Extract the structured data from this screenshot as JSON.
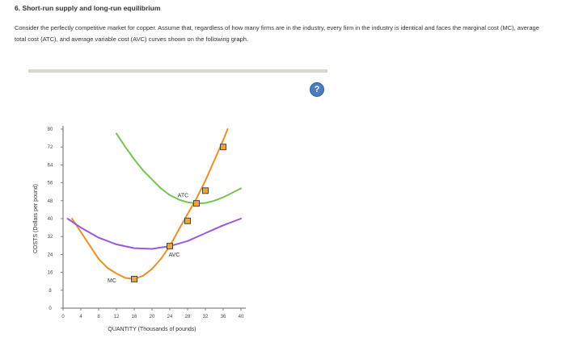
{
  "question": {
    "title": "6. Short-run supply and long-run equilibrium",
    "text": "Consider the perfectly competitive market for copper. Assume that, regardless of how many firms are in the industry, every firm in the industry is identical and faces the marginal cost (MC), average total cost (ATC), and average variable cost (AVC) curves shown on the following graph."
  },
  "help": {
    "label": "?"
  },
  "chart_data": {
    "type": "line",
    "xlabel": "QUANTITY (Thousands of pounds)",
    "ylabel": "COSTS (Dollars per pound)",
    "xlim": [
      0,
      40
    ],
    "ylim": [
      0,
      80
    ],
    "x_ticks": [
      0,
      4,
      8,
      12,
      16,
      20,
      24,
      28,
      32,
      36,
      40
    ],
    "y_ticks": [
      0,
      8,
      16,
      24,
      32,
      40,
      48,
      56,
      64,
      72,
      80
    ],
    "series": [
      {
        "name": "MC",
        "color": "#e8902a",
        "points": [
          [
            2,
            40
          ],
          [
            4,
            34
          ],
          [
            6,
            28
          ],
          [
            8,
            22
          ],
          [
            10,
            18
          ],
          [
            12,
            15.5
          ],
          [
            14,
            13.5
          ],
          [
            16,
            13
          ],
          [
            18,
            14.5
          ],
          [
            20,
            17.5
          ],
          [
            22,
            22
          ],
          [
            24,
            27.7
          ],
          [
            26,
            35
          ],
          [
            28,
            42
          ],
          [
            30,
            49
          ],
          [
            32,
            57
          ],
          [
            34,
            66
          ],
          [
            36,
            75
          ],
          [
            37,
            80
          ]
        ]
      },
      {
        "name": "ATC",
        "color": "#76c257",
        "points": [
          [
            12,
            78
          ],
          [
            14,
            72
          ],
          [
            16,
            66.5
          ],
          [
            18,
            61.5
          ],
          [
            20,
            57.5
          ],
          [
            22,
            53.5
          ],
          [
            24,
            50.5
          ],
          [
            26,
            48.5
          ],
          [
            28,
            47.3
          ],
          [
            30,
            46.8
          ],
          [
            32,
            47
          ],
          [
            34,
            48
          ],
          [
            36,
            49.5
          ],
          [
            38,
            51.5
          ],
          [
            40,
            53.5
          ]
        ]
      },
      {
        "name": "AVC",
        "color": "#9b59d8",
        "points": [
          [
            1,
            40
          ],
          [
            4,
            36
          ],
          [
            8,
            31.5
          ],
          [
            12,
            28.5
          ],
          [
            16,
            26.8
          ],
          [
            20,
            26.5
          ],
          [
            24,
            27.7
          ],
          [
            28,
            30
          ],
          [
            32,
            33.5
          ],
          [
            36,
            37
          ],
          [
            40,
            40
          ]
        ]
      }
    ],
    "markers": [
      {
        "x": 16,
        "y": 13
      },
      {
        "x": 24,
        "y": 27.7
      },
      {
        "x": 28,
        "y": 39
      },
      {
        "x": 30,
        "y": 46.8
      },
      {
        "x": 32,
        "y": 52.5
      },
      {
        "x": 36,
        "y": 72
      }
    ],
    "curve_labels": [
      {
        "text": "ATC",
        "x": 27,
        "y": 49.5
      },
      {
        "text": "AVC",
        "x": 25,
        "y": 23
      },
      {
        "text": "MC",
        "x": 11,
        "y": 11.5
      }
    ]
  }
}
